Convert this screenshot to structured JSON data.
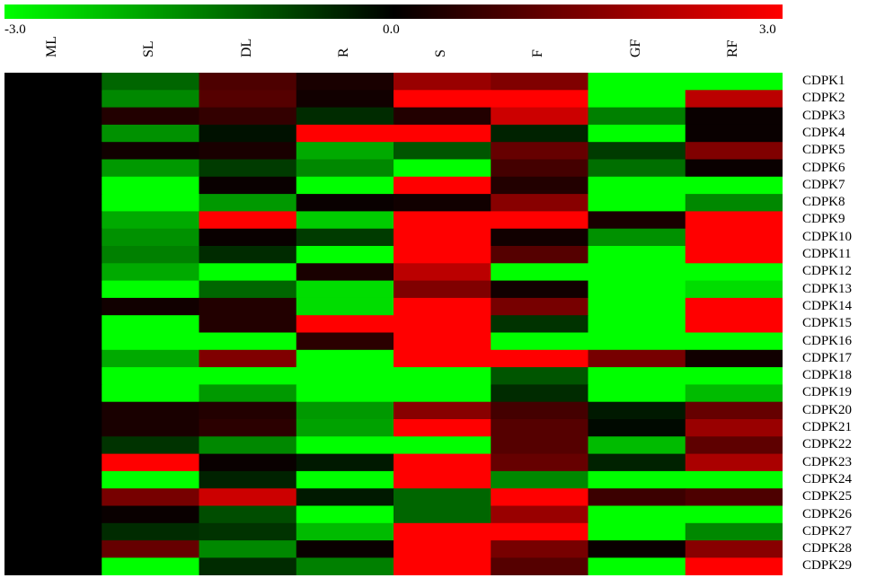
{
  "chart_data": {
    "type": "heatmap",
    "title": "",
    "scale": {
      "min": -3.0,
      "mid": 0.0,
      "max": 3.0,
      "min_label": "-3.0",
      "mid_label": "0.0",
      "max_label": "3.0",
      "low_color": "#00ff00",
      "mid_color": "#000000",
      "high_color": "#ff0000"
    },
    "columns": [
      "ML",
      "SL",
      "DL",
      "R",
      "S",
      "F",
      "GF",
      "RF"
    ],
    "rows": [
      "CDPK1",
      "CDPK2",
      "CDPK3",
      "CDPK4",
      "CDPK5",
      "CDPK6",
      "CDPK7",
      "CDPK8",
      "CDPK9",
      "CDPK10",
      "CDPK11",
      "CDPK12",
      "CDPK13",
      "CDPK14",
      "CDPK15",
      "CDPK16",
      "CDPK17",
      "CDPK18",
      "CDPK19",
      "CDPK20",
      "CDPK21",
      "CDPK22",
      "CDPK23",
      "CDPK24",
      "CDPK25",
      "CDPK26",
      "CDPK27",
      "CDPK28",
      "CDPK29"
    ],
    "values": [
      [
        0,
        -1.2,
        0.9,
        0.3,
        1.8,
        1.5,
        -3.0,
        -3.0
      ],
      [
        0,
        -1.6,
        1.0,
        0.2,
        3.0,
        3.0,
        -3.0,
        2.2
      ],
      [
        0,
        0.4,
        0.6,
        -0.5,
        0.4,
        2.4,
        -1.5,
        0.1
      ],
      [
        0,
        -1.7,
        -0.2,
        3.0,
        3.0,
        -0.4,
        -3.0,
        0.1
      ],
      [
        0,
        0.2,
        0.3,
        -2.0,
        -1.0,
        1.2,
        -0.7,
        1.5
      ],
      [
        0,
        -1.8,
        -0.7,
        -1.6,
        -3.0,
        0.8,
        -1.3,
        0.1
      ],
      [
        0,
        -3.0,
        0.1,
        -3.0,
        3.0,
        0.4,
        -3.0,
        -3.0
      ],
      [
        0,
        -3.0,
        -1.8,
        0.1,
        0.2,
        1.6,
        -3.0,
        -1.6
      ],
      [
        0,
        -2.0,
        3.0,
        -2.4,
        3.0,
        3.0,
        0.3,
        3.0
      ],
      [
        0,
        -1.7,
        0.1,
        -0.7,
        3.0,
        0.2,
        -1.7,
        3.0
      ],
      [
        0,
        -1.5,
        -0.5,
        -3.0,
        3.0,
        1.0,
        -3.0,
        3.0
      ],
      [
        0,
        -2.0,
        -3.0,
        0.3,
        2.2,
        -3.0,
        -3.0,
        -3.0
      ],
      [
        0,
        -3.0,
        -1.2,
        -2.6,
        1.5,
        0.2,
        -3.0,
        -2.6
      ],
      [
        0,
        0.2,
        0.4,
        -2.6,
        3.0,
        1.4,
        -3.0,
        3.0
      ],
      [
        0,
        -3.0,
        0.4,
        3.0,
        3.0,
        -0.6,
        -3.0,
        3.0
      ],
      [
        0,
        -3.0,
        -3.0,
        0.5,
        3.0,
        -3.0,
        -3.0,
        -3.0
      ],
      [
        0,
        -2.0,
        1.5,
        -3.0,
        3.0,
        3.0,
        1.4,
        0.2
      ],
      [
        0,
        -3.0,
        -3.0,
        -3.0,
        -3.0,
        -1.0,
        -3.0,
        -3.0
      ],
      [
        0,
        -3.0,
        -1.8,
        -3.0,
        -3.0,
        -0.5,
        -3.0,
        -2.2
      ],
      [
        0,
        0.3,
        0.4,
        -1.8,
        1.6,
        0.8,
        -0.3,
        1.2
      ],
      [
        0,
        0.3,
        0.5,
        -1.9,
        3.0,
        1.0,
        -0.1,
        1.8
      ],
      [
        0,
        -0.6,
        -1.6,
        -3.0,
        -3.0,
        1.0,
        -2.2,
        1.1
      ],
      [
        0,
        3.0,
        0.1,
        -0.3,
        3.0,
        1.2,
        -0.4,
        2.0
      ],
      [
        0,
        -3.0,
        -0.4,
        -3.0,
        3.0,
        -1.6,
        -3.0,
        -3.0
      ],
      [
        0,
        1.4,
        2.4,
        -0.3,
        -1.2,
        3.0,
        0.7,
        0.9
      ],
      [
        0,
        0.1,
        -0.9,
        -3.0,
        -1.2,
        1.8,
        -3.0,
        -3.0
      ],
      [
        0,
        -0.5,
        -0.6,
        -2.2,
        3.0,
        3.0,
        -3.0,
        -1.6
      ],
      [
        0,
        1.2,
        -1.6,
        0.1,
        3.0,
        1.4,
        0.1,
        1.6
      ],
      [
        0,
        -3.0,
        -0.5,
        -1.5,
        3.0,
        1.0,
        -3.0,
        3.0
      ]
    ]
  }
}
